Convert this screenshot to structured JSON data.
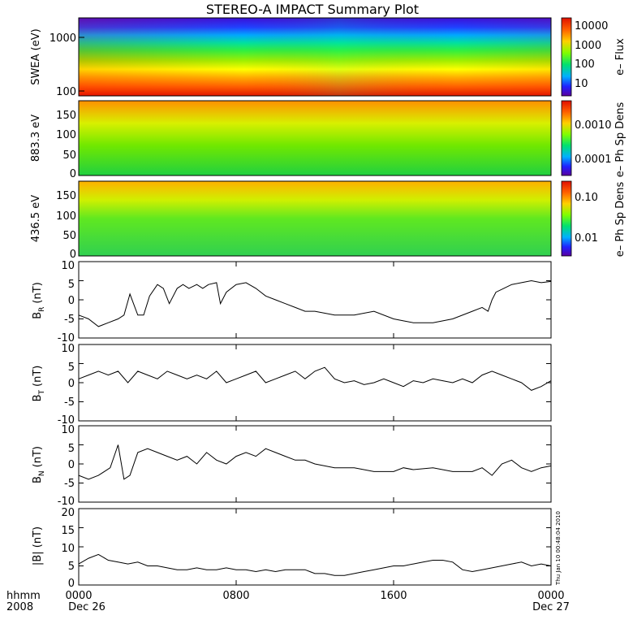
{
  "title": "STEREO-A IMPACT Summary Plot",
  "footer": {
    "left_label_1": "hhmm",
    "left_label_2": "2008",
    "date_start": "Dec 26",
    "date_end": "Dec 27",
    "timestamp": "Thu Jan 10 00:48:04 2010"
  },
  "colors": {
    "line": "#000000",
    "background": "#ffffff",
    "rainbow": [
      "#5a00a0",
      "#2020ff",
      "#00b0ff",
      "#00e070",
      "#40ff00",
      "#c0ff00",
      "#ffff00",
      "#ffb000",
      "#ff6000",
      "#e01000"
    ]
  },
  "chart_data": [
    {
      "type": "heatmap",
      "ylabel": "SWEA (eV)",
      "yticks": [
        "100",
        "1000"
      ],
      "colorbar_label": "e– Flux",
      "colorbar_ticks": [
        "10000",
        "1000",
        "100",
        "10"
      ],
      "scale": "log"
    },
    {
      "type": "heatmap",
      "ylabel": "883.3 eV",
      "yticks": [
        "0",
        "50",
        "100",
        "150"
      ],
      "ylim": [
        0,
        180
      ],
      "colorbar_label": "e– Ph Sp Dens",
      "colorbar_ticks": [
        "0.0010",
        "0.0001"
      ],
      "scale": "log"
    },
    {
      "type": "heatmap",
      "ylabel": "436.5 eV",
      "yticks": [
        "0",
        "50",
        "100",
        "150"
      ],
      "ylim": [
        0,
        180
      ],
      "colorbar_label": "e– Ph Sp Dens",
      "colorbar_ticks": [
        "0.10",
        "0.01"
      ],
      "scale": "log"
    },
    {
      "type": "line",
      "ylabel": "B",
      "ysub": "R",
      "yunit": "(nT)",
      "ylim": [
        -10,
        10
      ],
      "yticks": [
        "10",
        "5",
        "0",
        "-5",
        "-10"
      ],
      "x_hours": [
        0,
        0.5,
        1,
        1.5,
        2,
        2.3,
        2.6,
        3,
        3.3,
        3.6,
        4,
        4.3,
        4.6,
        5,
        5.3,
        5.6,
        6,
        6.3,
        6.6,
        7,
        7.2,
        7.5,
        8,
        8.5,
        9,
        9.5,
        10,
        10.5,
        11,
        11.5,
        12,
        13,
        14,
        15,
        16,
        16.5,
        17,
        17.5,
        18,
        19,
        20,
        20.5,
        20.8,
        21,
        21.2,
        21.6,
        22,
        22.5,
        23,
        23.5,
        24
      ],
      "values": [
        -4,
        -5,
        -7,
        -6,
        -5,
        -4,
        1.5,
        -4,
        -4,
        1,
        4,
        3,
        -1,
        3,
        4,
        3,
        4,
        3,
        4,
        4.5,
        -1,
        2,
        4,
        4.5,
        3,
        1,
        0,
        -1,
        -2,
        -3,
        -3,
        -4,
        -4,
        -3,
        -5,
        -5.5,
        -6,
        -6,
        -6,
        -5,
        -3,
        -2,
        -3,
        0,
        2,
        3,
        4,
        4.5,
        5,
        4.5,
        4.8
      ]
    },
    {
      "type": "line",
      "ylabel": "B",
      "ysub": "T",
      "yunit": "(nT)",
      "ylim": [
        -10,
        10
      ],
      "yticks": [
        "10",
        "5",
        "0",
        "-5",
        "-10"
      ],
      "x_hours": [
        0,
        0.5,
        1,
        1.5,
        2,
        2.5,
        3,
        3.5,
        4,
        4.5,
        5,
        5.5,
        6,
        6.5,
        7,
        7.5,
        8,
        8.5,
        9,
        9.5,
        10,
        10.5,
        11,
        11.5,
        12,
        12.5,
        13,
        13.5,
        14,
        14.5,
        15,
        15.5,
        16,
        16.5,
        17,
        17.5,
        18,
        18.5,
        19,
        19.5,
        20,
        20.5,
        21,
        21.5,
        22,
        22.5,
        23,
        23.5,
        24
      ],
      "values": [
        1,
        2,
        3,
        2,
        3,
        0,
        3,
        2,
        1,
        3,
        2,
        1,
        2,
        1,
        3,
        0,
        1,
        2,
        3,
        0,
        1,
        2,
        3,
        1,
        3,
        4,
        1,
        0,
        0.5,
        -0.5,
        0,
        1,
        0,
        -1,
        0.5,
        0,
        1,
        0.5,
        0,
        1,
        0,
        2,
        3,
        2,
        1,
        0,
        -2,
        -1,
        0.5
      ]
    },
    {
      "type": "line",
      "ylabel": "B",
      "ysub": "N",
      "yunit": "(nT)",
      "ylim": [
        -10,
        10
      ],
      "yticks": [
        "10",
        "5",
        "0",
        "-5",
        "-10"
      ],
      "x_hours": [
        0,
        0.5,
        1,
        1.3,
        1.6,
        2,
        2.3,
        2.6,
        3,
        3.5,
        4,
        4.5,
        5,
        5.5,
        6,
        6.5,
        7,
        7.5,
        8,
        8.5,
        9,
        9.5,
        10,
        10.5,
        11,
        11.5,
        12,
        13,
        14,
        15,
        16,
        16.5,
        17,
        18,
        19,
        20,
        20.5,
        21,
        21.5,
        22,
        22.5,
        23,
        23.5,
        24
      ],
      "values": [
        -3,
        -4,
        -3,
        -2,
        -1,
        5,
        -4,
        -3,
        3,
        4,
        3,
        2,
        1,
        2,
        0,
        3,
        1,
        0,
        2,
        3,
        2,
        4,
        3,
        2,
        1,
        1,
        0,
        -1,
        -1,
        -2,
        -2,
        -1,
        -1.5,
        -1,
        -2,
        -2,
        -1,
        -3,
        0,
        1,
        -1,
        -2,
        -1,
        -0.5
      ]
    },
    {
      "type": "line",
      "ylabel": "|B| (nT)",
      "ylim": [
        0,
        20
      ],
      "yticks": [
        "20",
        "15",
        "10",
        "5",
        "0"
      ],
      "x_hours": [
        0,
        0.5,
        1,
        1.5,
        2,
        2.5,
        3,
        3.5,
        4,
        4.5,
        5,
        5.5,
        6,
        6.5,
        7,
        7.5,
        8,
        8.5,
        9,
        9.5,
        10,
        10.5,
        11,
        11.5,
        12,
        12.5,
        13,
        13.5,
        14,
        14.5,
        15,
        15.5,
        16,
        16.5,
        17,
        17.5,
        18,
        18.5,
        19,
        19.5,
        20,
        20.5,
        21,
        21.5,
        22,
        22.5,
        23,
        23.5,
        24
      ],
      "values": [
        5.5,
        7,
        8,
        6.5,
        6,
        5.5,
        6,
        5,
        5,
        4.5,
        4,
        4,
        4.5,
        4,
        4,
        4.5,
        4,
        4,
        3.5,
        4,
        3.5,
        4,
        4,
        4,
        3,
        3,
        2.5,
        2.5,
        3,
        3.5,
        4,
        4.5,
        5,
        5,
        5.5,
        6,
        6.5,
        6.5,
        6,
        4,
        3.5,
        4,
        4.5,
        5,
        5.5,
        6,
        5,
        5.5,
        5
      ]
    }
  ],
  "x_axis": {
    "ticks": [
      "0000",
      "0800",
      "1600",
      "0000"
    ],
    "tick_hours": [
      0,
      8,
      16,
      24
    ]
  }
}
